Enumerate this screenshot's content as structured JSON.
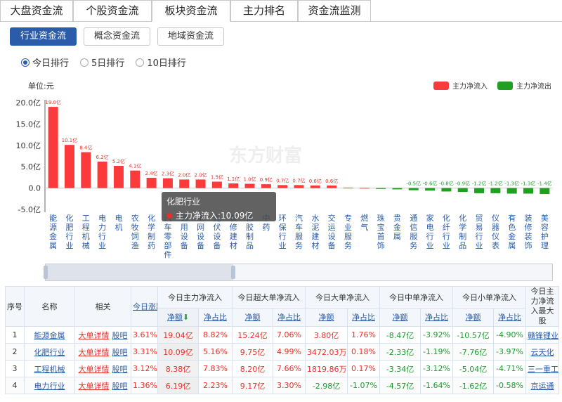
{
  "tabs": [
    "大盘资金流",
    "个股资金流",
    "板块资金流",
    "主力排名",
    "资金流监测"
  ],
  "active_tab": 2,
  "subtabs": [
    "行业资金流",
    "概念资金流",
    "地域资金流"
  ],
  "active_subtab": 0,
  "periods": [
    "今日排行",
    "5日排行",
    "10日排行"
  ],
  "active_period": 0,
  "chart_data": {
    "type": "bar",
    "ylabel": "单位:元",
    "ylim": [
      -5,
      20
    ],
    "yticks": [
      "20.0亿",
      "15.0亿",
      "10.0亿",
      "5.0亿",
      "0.0",
      "-5.0亿"
    ],
    "ytick_values": [
      20,
      15,
      10,
      5,
      0,
      -5
    ],
    "watermark": "东方财富",
    "legend": [
      "主力净流入",
      "主力净流出"
    ],
    "colors": {
      "inflow": "#fb3b3b",
      "outflow": "#20a020"
    },
    "categories": [
      "能源金属",
      "化肥行业",
      "工程机械",
      "电力行业",
      "电机",
      "农牧饲渔",
      "化学制药",
      "汽车零部件",
      "通用设备",
      "电网设备",
      "光伏设备",
      "装修建材",
      "橡胶制品",
      "中药",
      "环保行业",
      "汽车服务",
      "水泥建材",
      "交运设备",
      "专业服务",
      "燃气",
      "珠宝首饰",
      "贵金属",
      "通信服务",
      "家电行业",
      "化纤行业",
      "化学制品",
      "贸易行业",
      "仪器仪表",
      "有色金属",
      "装修装饰",
      "美容护理"
    ],
    "values": [
      19.0,
      10.1,
      8.4,
      6.2,
      5.2,
      4.1,
      2.4,
      2.3,
      2.0,
      2.0,
      1.5,
      1.1,
      1.0,
      0.9,
      0.7,
      0.7,
      0.6,
      0.6,
      0.1,
      0.05,
      -0.2,
      -0.3,
      -0.5,
      -0.6,
      -0.8,
      -0.9,
      -1.2,
      -1.2,
      -1.3,
      -1.3,
      -1.4
    ],
    "data_labels": [
      "19.0亿",
      "10.1亿",
      "8.4亿",
      "6.2亿",
      "5.2亿",
      "4.1亿",
      "2.4亿",
      "2.3亿",
      "2.0亿",
      "2.0亿",
      "1.5亿",
      "1.1亿",
      "1.0亿",
      "0.9亿",
      "0.7亿",
      "0.7亿",
      "0.6亿",
      "0.6亿",
      "",
      "",
      "",
      "",
      "-0.5亿",
      "-0.6亿",
      "-0.8亿",
      "-0.9亿",
      "-1.2亿",
      "-1.2亿",
      "-1.3亿",
      "-1.3亿",
      "-1.4亿"
    ]
  },
  "tooltip": {
    "title": "化肥行业",
    "text": "主力净流入:10.09亿"
  },
  "table": {
    "headers": {
      "seq": "序号",
      "name": "名称",
      "related": "相关",
      "change": "今日涨跌幅",
      "main": "今日主力净流入",
      "super": "今日超大单净流入",
      "large": "今日大单净流入",
      "mid": "今日中单净流入",
      "small": "今日小单净流入",
      "top_stock": "今日主力净流入最大股",
      "net": "净额",
      "ratio": "净占比",
      "sort_arrow": "⬇"
    },
    "related_links": [
      "大单详情",
      "股吧"
    ],
    "rows": [
      [
        "1",
        "能源金属",
        "3.61%",
        "19.04亿",
        "8.82%",
        "15.24亿",
        "7.06%",
        "3.80亿",
        "1.76%",
        "-8.47亿",
        "-3.92%",
        "-10.57亿",
        "-4.90%",
        "赣锋锂业"
      ],
      [
        "2",
        "化肥行业",
        "3.31%",
        "10.09亿",
        "5.16%",
        "9.75亿",
        "4.99%",
        "3472.03万",
        "0.18%",
        "-2.33亿",
        "-1.19%",
        "-7.76亿",
        "-3.97%",
        "云天化"
      ],
      [
        "3",
        "工程机械",
        "3.12%",
        "8.38亿",
        "7.83%",
        "8.20亿",
        "7.66%",
        "1819.86万",
        "0.17%",
        "-3.34亿",
        "-3.12%",
        "-5.04亿",
        "-4.71%",
        "三一重工"
      ],
      [
        "4",
        "电力行业",
        "1.36%",
        "6.19亿",
        "2.23%",
        "9.17亿",
        "3.30%",
        "-2.98亿",
        "-1.07%",
        "-4.57亿",
        "-1.64%",
        "-1.62亿",
        "-0.58%",
        "京运通"
      ]
    ]
  }
}
